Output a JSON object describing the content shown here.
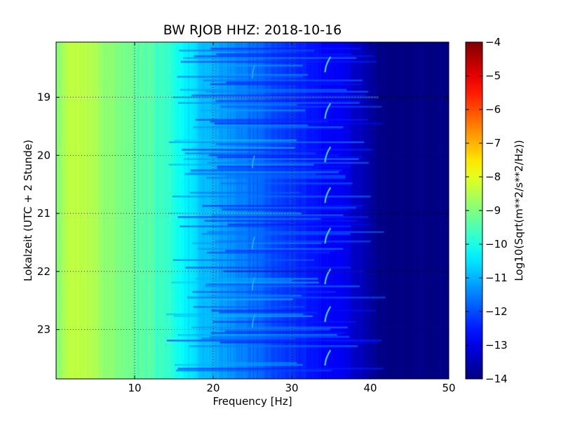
{
  "chart_data": {
    "type": "heatmap",
    "title": "BW RJOB HHZ: 2018-10-16",
    "xlabel": "Frequency [Hz]",
    "ylabel": "Lokalzeit (UTC + 2 Stunde)",
    "xlim": [
      0,
      50
    ],
    "ylim": [
      18.05,
      23.85
    ],
    "y_inverted": true,
    "x_ticks": [
      10,
      20,
      30,
      40,
      50
    ],
    "y_ticks": [
      19,
      20,
      21,
      22,
      23
    ],
    "grid": true,
    "colormap": "jet",
    "colorbar": {
      "label": "Log10(Sqrt(m**2/s**2/Hz))",
      "range": [
        -14,
        -4
      ],
      "ticks": [
        -14,
        -13,
        -12,
        -11,
        -10,
        -9,
        -8,
        -7,
        -6,
        -5,
        -4
      ]
    },
    "spectrum_profile": {
      "frequency_hz": [
        0,
        1,
        2,
        3,
        4,
        5,
        6,
        7,
        8,
        10,
        12,
        14,
        15,
        16,
        17,
        18,
        20,
        22,
        24,
        26,
        28,
        30,
        32,
        34,
        36,
        37,
        38,
        39,
        40,
        41,
        42,
        50
      ],
      "log10_amplitude": [
        -9.0,
        -8.6,
        -8.4,
        -8.4,
        -8.5,
        -8.6,
        -8.8,
        -8.9,
        -9.0,
        -9.2,
        -9.4,
        -9.7,
        -9.9,
        -10.2,
        -10.5,
        -10.7,
        -11.0,
        -11.3,
        -11.5,
        -11.8,
        -12.1,
        -12.3,
        -12.5,
        -12.7,
        -12.9,
        -13.0,
        -13.2,
        -13.4,
        -13.6,
        -13.9,
        -14.0,
        -14.0
      ]
    },
    "line_features_hz": [
      34.5,
      25.0
    ]
  }
}
